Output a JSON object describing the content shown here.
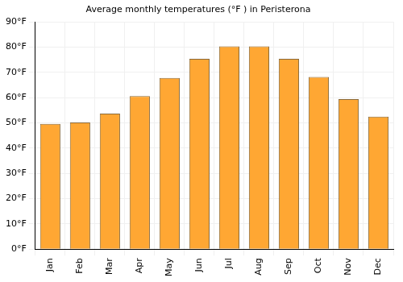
{
  "chart_data": {
    "type": "bar",
    "title": "Average monthly temperatures (°F ) in Peristerona",
    "categories": [
      "Jan",
      "Feb",
      "Mar",
      "Apr",
      "May",
      "Jun",
      "Jul",
      "Aug",
      "Sep",
      "Oct",
      "Nov",
      "Dec"
    ],
    "values": [
      49.6,
      50.2,
      53.7,
      60.6,
      67.8,
      75.4,
      80.3,
      80.3,
      75.4,
      68.2,
      59.4,
      52.5
    ],
    "color": "#ffa733",
    "ylim": [
      0,
      90
    ],
    "yticks": [
      {
        "value": 0,
        "label": "0°F"
      },
      {
        "value": 10,
        "label": "10°F"
      },
      {
        "value": 20,
        "label": "20°F"
      },
      {
        "value": 30,
        "label": "30°F"
      },
      {
        "value": 40,
        "label": "40°F"
      },
      {
        "value": 50,
        "label": "50°F"
      },
      {
        "value": 60,
        "label": "60°F"
      },
      {
        "value": 70,
        "label": "70°F"
      },
      {
        "value": 80,
        "label": "80°F"
      },
      {
        "value": 90,
        "label": "90°F"
      }
    ],
    "grid": true
  }
}
